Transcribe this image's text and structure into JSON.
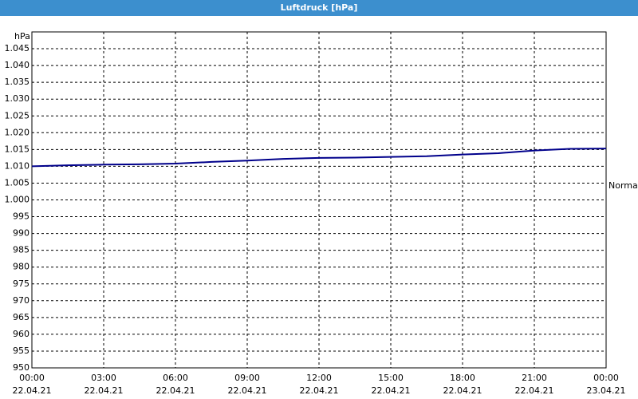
{
  "chart_data": {
    "type": "line",
    "title": "Luftdruck [hPa]",
    "y_label": "hPa",
    "annotation": "Normal",
    "x": [
      0,
      1.5,
      3,
      4.5,
      6,
      7.5,
      9,
      10.5,
      12,
      13.5,
      15,
      16.5,
      18,
      19.5,
      21,
      22.5,
      24
    ],
    "series": [
      {
        "name": "Luftdruck",
        "color": "#00008b",
        "values": [
          1010,
          1010.3,
          1010.5,
          1010.6,
          1010.8,
          1011.3,
          1011.7,
          1012.2,
          1012.5,
          1012.6,
          1012.8,
          1013.0,
          1013.5,
          1013.9,
          1014.7,
          1015.2,
          1015.3
        ]
      }
    ],
    "xlim": [
      0,
      24
    ],
    "xticks": [
      {
        "value": 0,
        "label": "00:00",
        "date": "22.04.21"
      },
      {
        "value": 3,
        "label": "03:00",
        "date": "22.04.21"
      },
      {
        "value": 6,
        "label": "06:00",
        "date": "22.04.21"
      },
      {
        "value": 9,
        "label": "09:00",
        "date": "22.04.21"
      },
      {
        "value": 12,
        "label": "12:00",
        "date": "22.04.21"
      },
      {
        "value": 15,
        "label": "15:00",
        "date": "22.04.21"
      },
      {
        "value": 18,
        "label": "18:00",
        "date": "22.04.21"
      },
      {
        "value": 21,
        "label": "21:00",
        "date": "22.04.21"
      },
      {
        "value": 24,
        "label": "00:00",
        "date": "23.04.21"
      }
    ],
    "ylim": [
      950,
      1050
    ],
    "yticks": [
      950,
      955,
      960,
      965,
      970,
      975,
      980,
      985,
      990,
      995,
      {
        "value": 1000,
        "label": "1.000"
      },
      {
        "value": 1005,
        "label": "1.005"
      },
      {
        "value": 1010,
        "label": "1.010"
      },
      {
        "value": 1015,
        "label": "1.015"
      },
      {
        "value": 1020,
        "label": "1.020"
      },
      {
        "value": 1025,
        "label": "1.025"
      },
      {
        "value": 1030,
        "label": "1.030"
      },
      {
        "value": 1035,
        "label": "1.035"
      },
      {
        "value": 1040,
        "label": "1.040"
      },
      {
        "value": 1045,
        "label": "1.045"
      }
    ],
    "grid": true
  }
}
